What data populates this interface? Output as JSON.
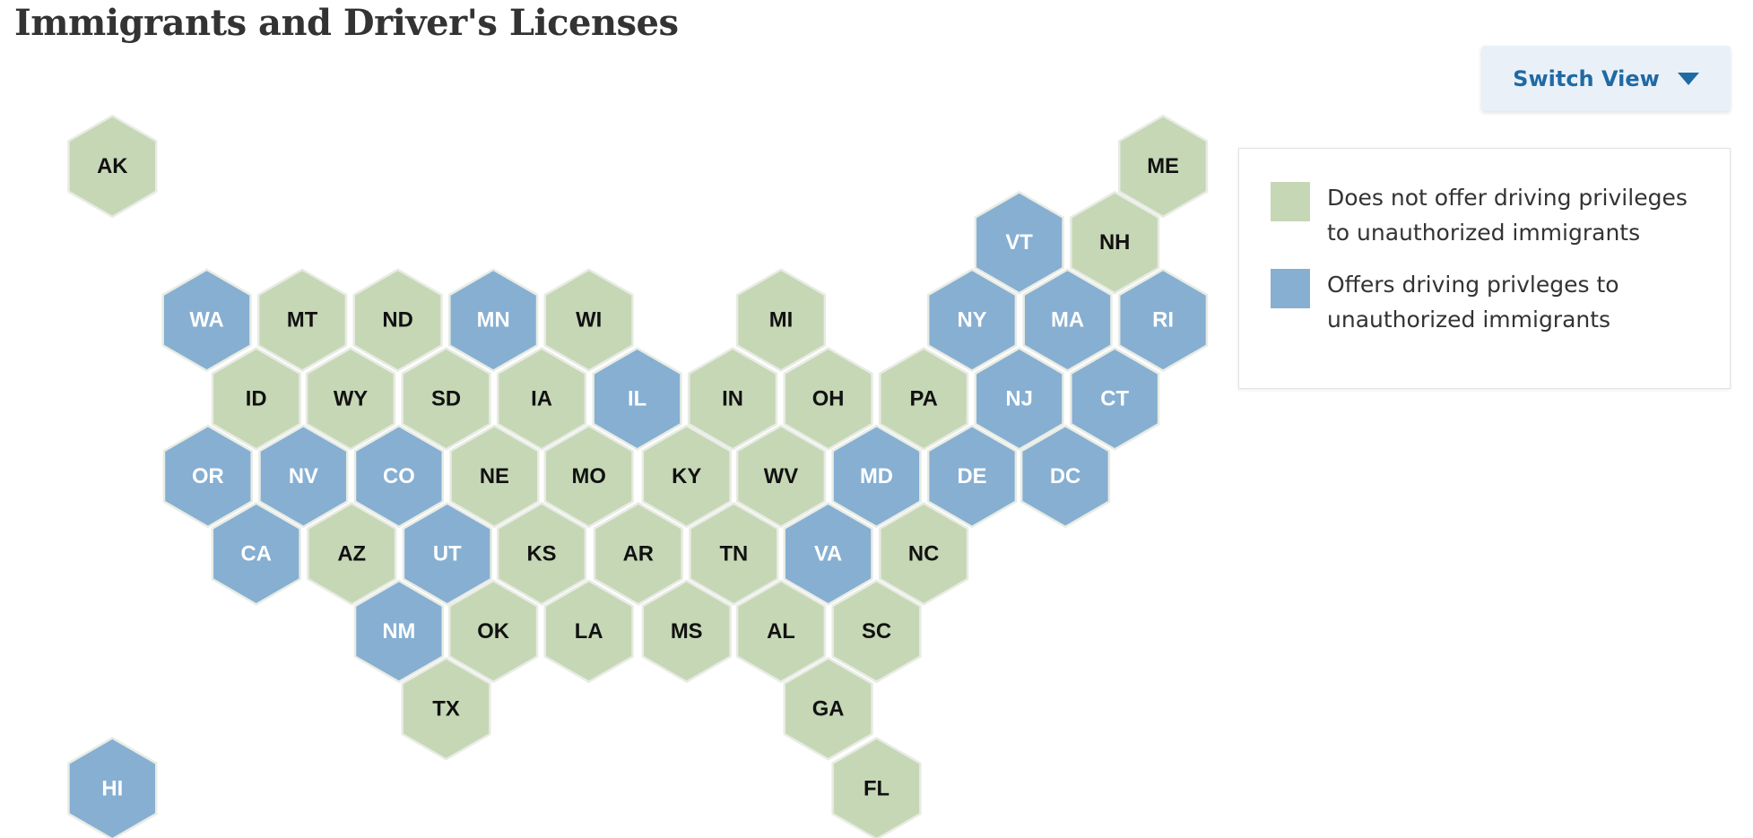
{
  "title": "Immigrants and Driver's Licenses",
  "button": "Switch View",
  "legend": [
    {
      "label": "Does not offer driving privileges to unauthorized immigrants",
      "color": "#c6d7b6"
    },
    {
      "label": "Offers driving privleges to unauthorized immigrants",
      "color": "#86afd2"
    }
  ],
  "states": [
    {
      "abbr": "AK",
      "group": 0
    },
    {
      "abbr": "ME",
      "group": 0
    },
    {
      "abbr": "VT",
      "group": 1
    },
    {
      "abbr": "NH",
      "group": 0
    },
    {
      "abbr": "WA",
      "group": 1
    },
    {
      "abbr": "MT",
      "group": 0
    },
    {
      "abbr": "ND",
      "group": 0
    },
    {
      "abbr": "MN",
      "group": 1
    },
    {
      "abbr": "WI",
      "group": 0
    },
    {
      "abbr": "MI",
      "group": 0
    },
    {
      "abbr": "NY",
      "group": 1
    },
    {
      "abbr": "MA",
      "group": 1
    },
    {
      "abbr": "RI",
      "group": 1
    },
    {
      "abbr": "ID",
      "group": 0
    },
    {
      "abbr": "WY",
      "group": 0
    },
    {
      "abbr": "SD",
      "group": 0
    },
    {
      "abbr": "IA",
      "group": 0
    },
    {
      "abbr": "IL",
      "group": 1
    },
    {
      "abbr": "IN",
      "group": 0
    },
    {
      "abbr": "OH",
      "group": 0
    },
    {
      "abbr": "PA",
      "group": 0
    },
    {
      "abbr": "NJ",
      "group": 1
    },
    {
      "abbr": "CT",
      "group": 1
    },
    {
      "abbr": "OR",
      "group": 1
    },
    {
      "abbr": "NV",
      "group": 1
    },
    {
      "abbr": "CO",
      "group": 1
    },
    {
      "abbr": "NE",
      "group": 0
    },
    {
      "abbr": "MO",
      "group": 0
    },
    {
      "abbr": "KY",
      "group": 0
    },
    {
      "abbr": "WV",
      "group": 0
    },
    {
      "abbr": "MD",
      "group": 1
    },
    {
      "abbr": "DE",
      "group": 1
    },
    {
      "abbr": "DC",
      "group": 1
    },
    {
      "abbr": "CA",
      "group": 1
    },
    {
      "abbr": "AZ",
      "group": 0
    },
    {
      "abbr": "UT",
      "group": 1
    },
    {
      "abbr": "KS",
      "group": 0
    },
    {
      "abbr": "AR",
      "group": 0
    },
    {
      "abbr": "TN",
      "group": 0
    },
    {
      "abbr": "VA",
      "group": 1
    },
    {
      "abbr": "NC",
      "group": 0
    },
    {
      "abbr": "NM",
      "group": 1
    },
    {
      "abbr": "OK",
      "group": 0
    },
    {
      "abbr": "LA",
      "group": 0
    },
    {
      "abbr": "MS",
      "group": 0
    },
    {
      "abbr": "AL",
      "group": 0
    },
    {
      "abbr": "SC",
      "group": 0
    },
    {
      "abbr": "TX",
      "group": 0
    },
    {
      "abbr": "GA",
      "group": 0
    },
    {
      "abbr": "HI",
      "group": 1
    },
    {
      "abbr": "FL",
      "group": 0
    }
  ]
}
